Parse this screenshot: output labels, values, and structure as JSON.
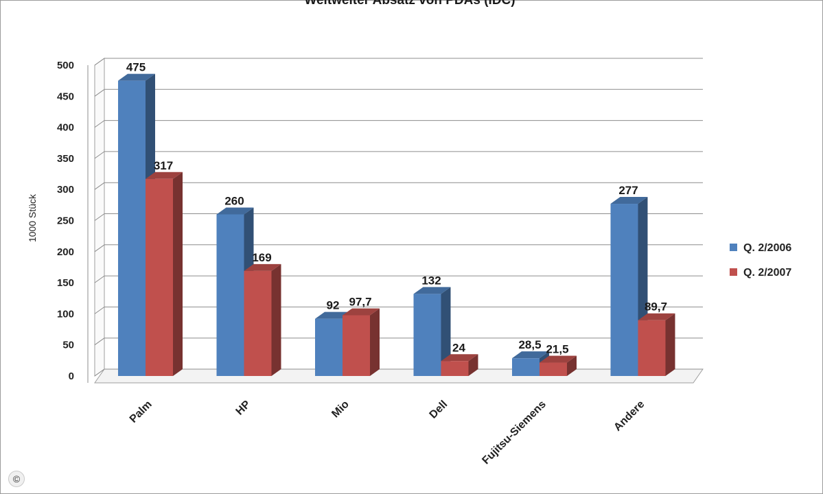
{
  "chart_data": {
    "type": "bar",
    "title": "Weltweiter Absatz von PDAs (IDC)",
    "xlabel": "",
    "ylabel": "1000 Stück",
    "categories": [
      "Palm",
      "HP",
      "Mio",
      "Dell",
      "Fujitsu-Siemens",
      "Andere"
    ],
    "series": [
      {
        "name": "Q. 2/2006",
        "color": "#4f81bd",
        "values": [
          475,
          260,
          92,
          132,
          28.5,
          277
        ],
        "labels": [
          "475",
          "260",
          "92",
          "132",
          "28,5",
          "277"
        ]
      },
      {
        "name": "Q. 2/2007",
        "color": "#c0504d",
        "values": [
          317,
          169,
          97.7,
          24,
          21.5,
          89.7
        ],
        "labels": [
          "317",
          "169",
          "97,7",
          "24",
          "21,5",
          "89,7"
        ]
      }
    ],
    "ylim": [
      0,
      500
    ],
    "yticks": [
      0,
      50,
      100,
      150,
      200,
      250,
      300,
      350,
      400,
      450,
      500
    ],
    "grid": true,
    "legend_position": "right",
    "three_d": true
  },
  "copyright_symbol": "©"
}
